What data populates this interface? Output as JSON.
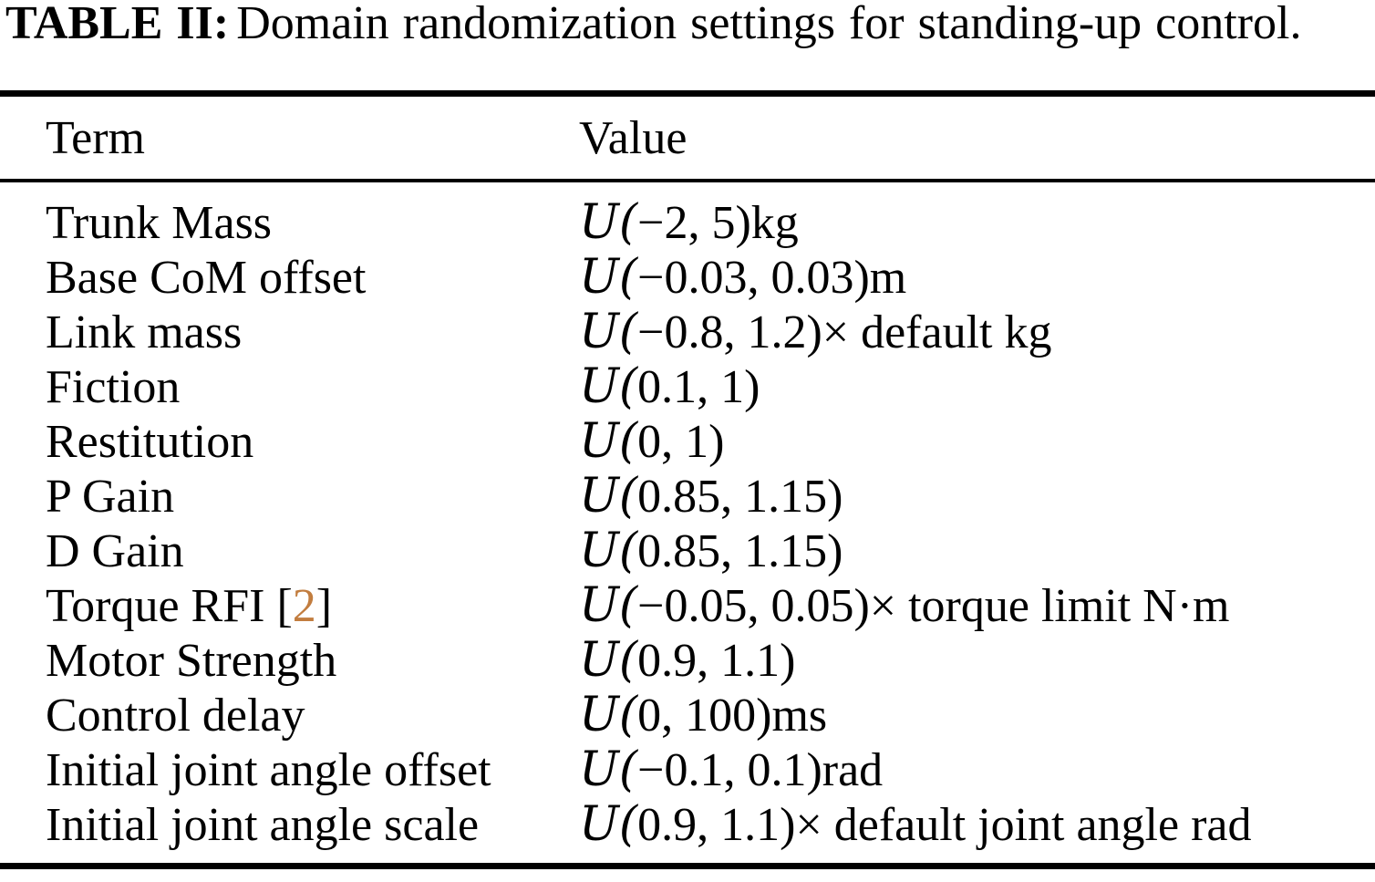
{
  "caption": {
    "label": "TABLE II:",
    "text": "Domain randomization settings for standing-up control."
  },
  "colors": {
    "text": "#000000",
    "background": "#ffffff",
    "citation_link": "#c27d3f"
  },
  "table": {
    "headers": [
      "Term",
      "Value"
    ],
    "rows": [
      {
        "term": "Trunk Mass",
        "value": "U(−2, 5)kg"
      },
      {
        "term": "Base CoM offset",
        "value": "U(−0.03, 0.03)m"
      },
      {
        "term": "Link mass",
        "value": "U(−0.8, 1.2)× default kg"
      },
      {
        "term": "Fiction",
        "value": "U(0.1, 1)"
      },
      {
        "term": "Restitution",
        "value": "U(0, 1)"
      },
      {
        "term": "P Gain",
        "value": "U(0.85, 1.15)"
      },
      {
        "term": "D Gain",
        "value": "U(0.85, 1.15)"
      },
      {
        "term": "Torque RFI",
        "cite_open": "[",
        "cite": "2",
        "cite_close": "]",
        "value": "U(−0.05, 0.05)× torque limit N·m"
      },
      {
        "term": "Motor Strength",
        "value": "U(0.9, 1.1)"
      },
      {
        "term": "Control delay",
        "value": "U(0, 100)ms"
      },
      {
        "term": "Initial joint angle offset",
        "value": "U(−0.1, 0.1)rad"
      },
      {
        "term": "Initial joint angle scale",
        "value": "U(0.9, 1.1)× default joint angle rad"
      }
    ]
  }
}
